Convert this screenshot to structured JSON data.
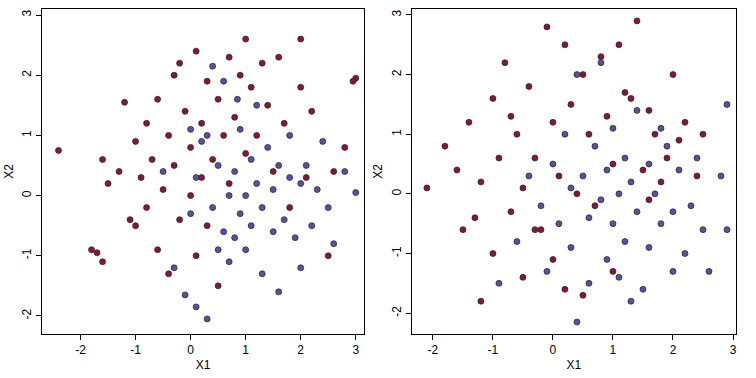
{
  "chart_data": [
    {
      "type": "scatter",
      "x_label": "X1",
      "y_label": "X2",
      "marker": "circle",
      "xlim": [
        -2.7,
        3.15
      ],
      "ylim": [
        -2.3,
        3.1
      ],
      "xticks": [
        -2,
        -1,
        0,
        1,
        2,
        3
      ],
      "yticks": [
        -2,
        -1,
        0,
        1,
        2,
        3
      ],
      "series": [
        {
          "color": "#8b1538",
          "x": [
            -2.4,
            -1.8,
            -1.7,
            -1.6,
            -1.6,
            -1.5,
            -1.3,
            -1.2,
            -1.1,
            -1.0,
            -1.0,
            -0.9,
            -0.8,
            -0.8,
            -0.7,
            -0.6,
            -0.6,
            -0.5,
            -0.4,
            -0.4,
            -0.3,
            -0.3,
            -0.2,
            -0.1,
            0.0,
            0.0,
            0.1,
            0.1,
            0.2,
            0.2,
            0.3,
            0.3,
            0.4,
            0.5,
            0.5,
            0.6,
            0.7,
            0.7,
            0.8,
            0.9,
            1.0,
            1.0,
            1.1,
            1.2,
            1.3,
            1.4,
            1.5,
            1.6,
            1.7,
            1.8,
            2.0,
            2.0,
            2.1,
            2.2,
            2.5,
            2.6,
            2.8,
            3.0,
            2.95,
            -0.2
          ],
          "values": [
            0.75,
            -0.9,
            -0.95,
            -1.1,
            0.6,
            0.2,
            0.4,
            1.55,
            -0.4,
            0.9,
            -0.5,
            0.3,
            1.2,
            -0.2,
            0.6,
            1.6,
            -0.9,
            0.1,
            1.0,
            -1.3,
            2.0,
            0.5,
            -0.4,
            1.4,
            0.0,
            0.8,
            2.4,
            -1.0,
            1.2,
            0.3,
            1.9,
            -0.5,
            0.6,
            1.6,
            -1.5,
            1.0,
            2.3,
            0.2,
            1.3,
            2.0,
            2.6,
            0.7,
            1.8,
            1.0,
            2.2,
            1.5,
            0.4,
            2.3,
            1.2,
            -0.2,
            2.6,
            1.8,
            0.3,
            1.4,
            -1.0,
            0.4,
            0.8,
            1.95,
            1.9,
            2.2
          ]
        },
        {
          "color": "#5b4fa3",
          "x": [
            -0.3,
            -0.1,
            0.0,
            0.1,
            0.1,
            0.2,
            0.3,
            0.3,
            0.4,
            0.4,
            0.5,
            0.5,
            0.6,
            0.6,
            0.7,
            0.7,
            0.8,
            0.8,
            0.9,
            0.9,
            1.0,
            1.0,
            1.1,
            1.1,
            1.2,
            1.2,
            1.3,
            1.3,
            1.4,
            1.5,
            1.5,
            1.6,
            1.7,
            1.8,
            1.8,
            1.9,
            2.0,
            2.0,
            2.1,
            2.2,
            2.3,
            2.4,
            2.5,
            2.6,
            2.8,
            3.0,
            -0.5,
            0.0,
            1.6,
            0.85
          ],
          "values": [
            -1.2,
            -1.65,
            -0.3,
            0.3,
            -1.85,
            0.9,
            -2.05,
            1.0,
            2.15,
            -0.2,
            0.5,
            -0.9,
            -0.6,
            1.9,
            0.0,
            -1.1,
            0.4,
            -0.7,
            1.1,
            -0.3,
            0.0,
            -0.9,
            0.6,
            -0.5,
            0.2,
            1.5,
            -0.2,
            -1.3,
            0.8,
            -0.6,
            0.1,
            0.5,
            -0.4,
            0.3,
            1.0,
            -0.7,
            0.2,
            -1.2,
            0.5,
            -0.5,
            0.1,
            0.9,
            -0.2,
            -0.8,
            0.4,
            0.05,
            0.4,
            1.1,
            -1.6,
            1.6
          ]
        }
      ]
    },
    {
      "type": "scatter",
      "x_label": "X1",
      "y_label": "X2",
      "marker": "circle",
      "xlim": [
        -2.35,
        3.05
      ],
      "ylim": [
        -2.35,
        3.1
      ],
      "xticks": [
        -2,
        -1,
        0,
        1,
        2,
        3
      ],
      "yticks": [
        -2,
        -1,
        0,
        1,
        2,
        3
      ],
      "series": [
        {
          "color": "#8b1538",
          "x": [
            -2.1,
            -1.8,
            -1.6,
            -1.5,
            -1.4,
            -1.2,
            -1.2,
            -1.0,
            -1.0,
            -0.9,
            -0.8,
            -0.7,
            -0.6,
            -0.5,
            -0.5,
            -0.4,
            -0.3,
            -0.2,
            -0.1,
            0.0,
            0.0,
            0.1,
            0.2,
            0.2,
            0.3,
            0.4,
            0.5,
            0.6,
            0.7,
            0.8,
            0.9,
            1.0,
            1.1,
            1.2,
            1.3,
            1.4,
            1.5,
            1.6,
            1.7,
            1.8,
            1.9,
            2.0,
            2.1,
            2.2,
            2.4,
            2.5,
            -0.3,
            0.5,
            1.0,
            -1.3,
            1.6,
            -0.7
          ],
          "values": [
            0.1,
            0.8,
            0.4,
            -0.6,
            1.2,
            -1.8,
            0.2,
            1.6,
            -1.0,
            0.6,
            2.2,
            -0.3,
            1.0,
            0.1,
            -1.4,
            1.8,
            0.6,
            -0.6,
            2.8,
            1.2,
            -1.1,
            0.3,
            2.5,
            -1.6,
            1.5,
            0.0,
            2.0,
            1.0,
            -0.2,
            2.3,
            1.3,
            0.5,
            2.5,
            1.7,
            1.6,
            2.9,
            0.4,
            1.4,
            1.0,
            0.2,
            0.6,
            2.0,
            0.9,
            1.2,
            0.3,
            1.0,
            -0.6,
            -1.7,
            -1.3,
            -0.4,
            -0.1,
            1.3
          ]
        },
        {
          "color": "#5b4fa3",
          "x": [
            -0.9,
            -0.6,
            -0.4,
            -0.2,
            -0.1,
            0.0,
            0.1,
            0.2,
            0.3,
            0.4,
            0.4,
            0.5,
            0.6,
            0.6,
            0.7,
            0.8,
            0.8,
            0.9,
            0.9,
            1.0,
            1.0,
            1.1,
            1.1,
            1.2,
            1.2,
            1.3,
            1.4,
            1.4,
            1.5,
            1.6,
            1.6,
            1.7,
            1.8,
            1.9,
            2.0,
            2.1,
            2.2,
            2.3,
            2.4,
            2.5,
            2.8,
            2.9,
            2.9,
            2.6,
            1.3,
            0.3,
            1.8,
            2.0
          ],
          "values": [
            -1.5,
            -0.8,
            0.3,
            -0.2,
            -1.3,
            0.5,
            -0.5,
            1.0,
            -0.9,
            2.0,
            -2.15,
            0.3,
            -0.4,
            -1.5,
            0.8,
            -0.1,
            2.2,
            0.4,
            -1.1,
            1.1,
            -0.5,
            0.0,
            -1.4,
            0.6,
            -0.8,
            0.2,
            -0.3,
            1.4,
            -1.6,
            0.5,
            -0.9,
            0.0,
            -0.5,
            0.8,
            -0.3,
            0.4,
            -1.0,
            -0.2,
            0.6,
            -0.6,
            0.3,
            1.5,
            -0.6,
            -1.3,
            -1.8,
            0.1,
            1.1,
            -1.3
          ]
        }
      ]
    }
  ]
}
